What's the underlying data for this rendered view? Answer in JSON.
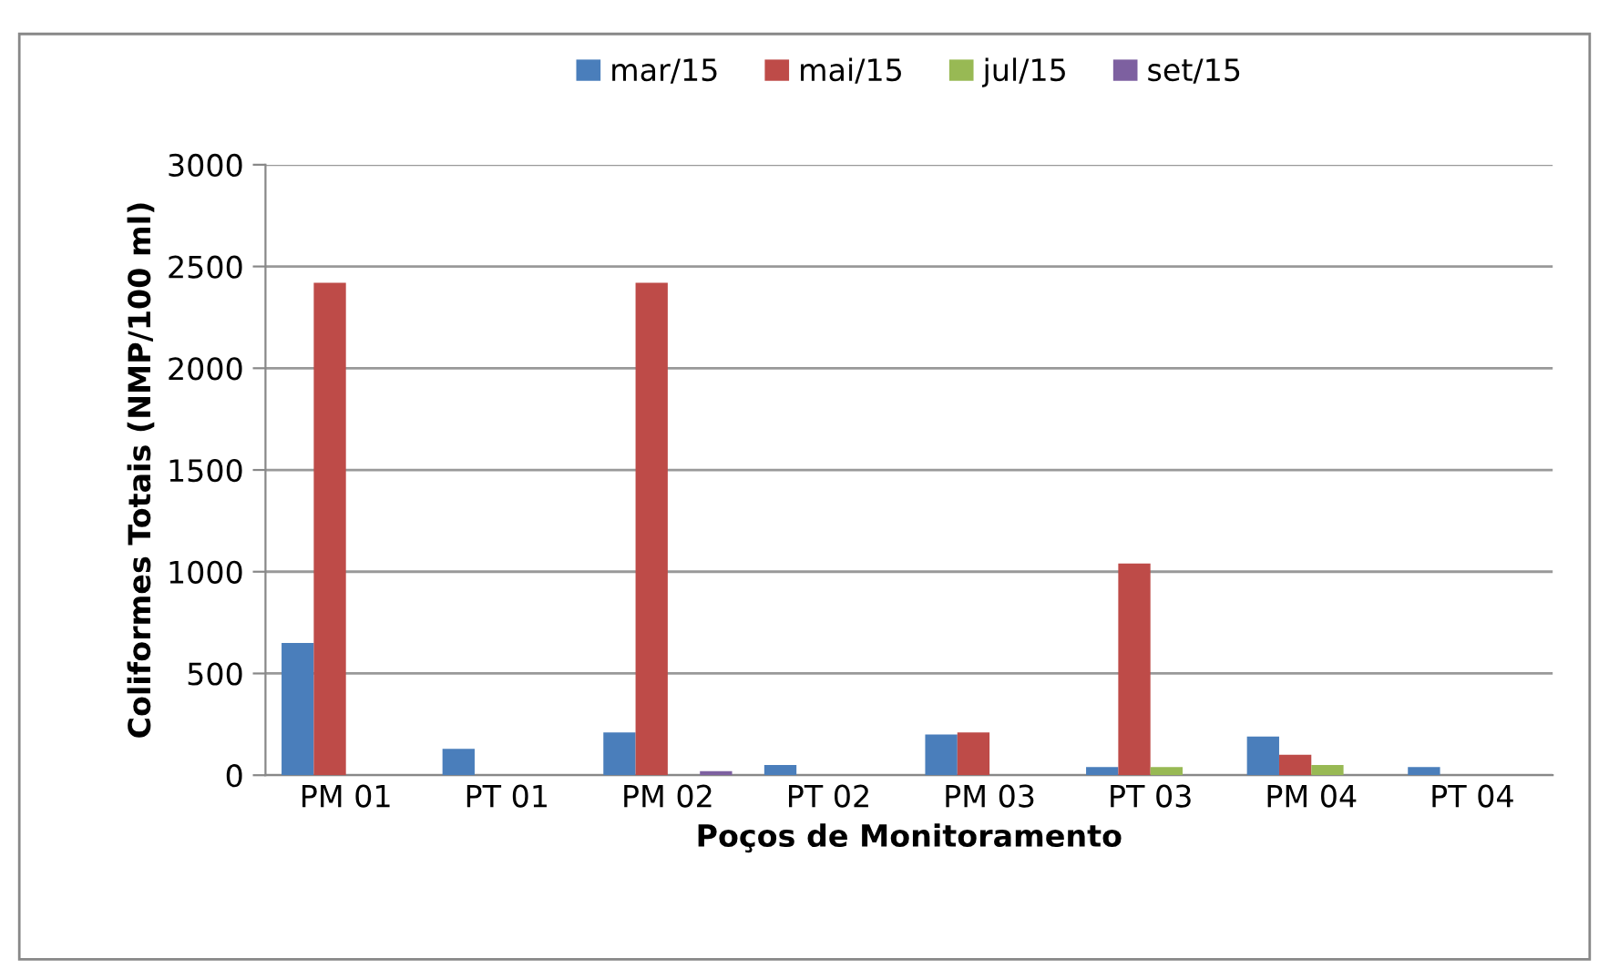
{
  "chart_data": {
    "type": "bar",
    "xlabel": "Poços de Monitoramento",
    "ylabel": "Coliformes Totais (NMP/100 ml)",
    "categories": [
      "PM 01",
      "PT 01",
      "PM 02",
      "PT 02",
      "PM 03",
      "PT 03",
      "PM 04",
      "PT 04"
    ],
    "series": [
      {
        "name": "mar/15",
        "color": "#4a7ebb",
        "values": [
          650,
          130,
          210,
          50,
          200,
          40,
          190,
          40
        ]
      },
      {
        "name": "mai/15",
        "color": "#be4b48",
        "values": [
          2420,
          null,
          2420,
          null,
          210,
          1040,
          100,
          null
        ]
      },
      {
        "name": "jul/15",
        "color": "#98b954",
        "values": [
          null,
          null,
          null,
          null,
          null,
          40,
          50,
          null
        ]
      },
      {
        "name": "set/15",
        "color": "#7d60a0",
        "values": [
          null,
          null,
          20,
          null,
          null,
          null,
          null,
          null
        ]
      }
    ],
    "ylim": [
      0,
      3000
    ],
    "yticks": [
      0,
      500,
      1000,
      1500,
      2000,
      2500,
      3000
    ],
    "grid": "y",
    "legend": "top"
  }
}
